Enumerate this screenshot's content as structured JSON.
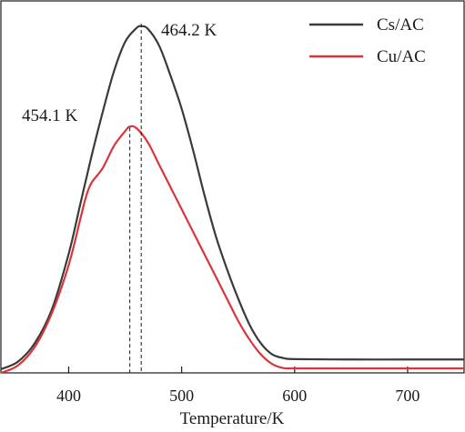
{
  "chart_data": {
    "type": "line",
    "title": "",
    "xlabel": "Temperature/K",
    "ylabel": "",
    "xlim": [
      340,
      750
    ],
    "ylim": [
      0,
      100
    ],
    "x_ticks": [
      400,
      500,
      600,
      700
    ],
    "y_ticks_shown": false,
    "grid": false,
    "legend_position": "top-right",
    "series": [
      {
        "name": "Cs/AC",
        "color": "#3a3a3a",
        "points": [
          [
            340,
            1
          ],
          [
            355,
            3
          ],
          [
            370,
            8
          ],
          [
            385,
            17
          ],
          [
            400,
            32
          ],
          [
            410,
            45
          ],
          [
            420,
            58
          ],
          [
            430,
            70
          ],
          [
            440,
            81
          ],
          [
            450,
            89
          ],
          [
            460,
            92.7
          ],
          [
            464.2,
            93.2
          ],
          [
            470,
            92.5
          ],
          [
            480,
            88
          ],
          [
            490,
            80
          ],
          [
            500,
            71
          ],
          [
            510,
            60
          ],
          [
            520,
            48
          ],
          [
            530,
            37
          ],
          [
            540,
            28
          ],
          [
            550,
            20
          ],
          [
            560,
            13
          ],
          [
            570,
            8
          ],
          [
            580,
            5
          ],
          [
            590,
            4
          ],
          [
            600,
            3.7
          ],
          [
            650,
            3.6
          ],
          [
            700,
            3.6
          ],
          [
            750,
            3.6
          ]
        ]
      },
      {
        "name": "Cu/AC",
        "color": "#d9353a",
        "points": [
          [
            340,
            0
          ],
          [
            355,
            2
          ],
          [
            370,
            7
          ],
          [
            385,
            16
          ],
          [
            400,
            29
          ],
          [
            410,
            41
          ],
          [
            415,
            47
          ],
          [
            420,
            51
          ],
          [
            430,
            55
          ],
          [
            440,
            61
          ],
          [
            450,
            65
          ],
          [
            454.1,
            66.2
          ],
          [
            460,
            65.8
          ],
          [
            470,
            62
          ],
          [
            480,
            56
          ],
          [
            490,
            50
          ],
          [
            500,
            44
          ],
          [
            510,
            38
          ],
          [
            520,
            32
          ],
          [
            530,
            26
          ],
          [
            540,
            20
          ],
          [
            550,
            14
          ],
          [
            560,
            9
          ],
          [
            570,
            5
          ],
          [
            580,
            2.4
          ],
          [
            590,
            1.3
          ],
          [
            600,
            1.2
          ],
          [
            650,
            1.2
          ],
          [
            700,
            1.2
          ],
          [
            750,
            1.2
          ]
        ]
      }
    ],
    "annotations": [
      {
        "text": "464.2 K",
        "x": 464.2
      },
      {
        "text": "454.1 K",
        "x": 454.1
      }
    ]
  }
}
